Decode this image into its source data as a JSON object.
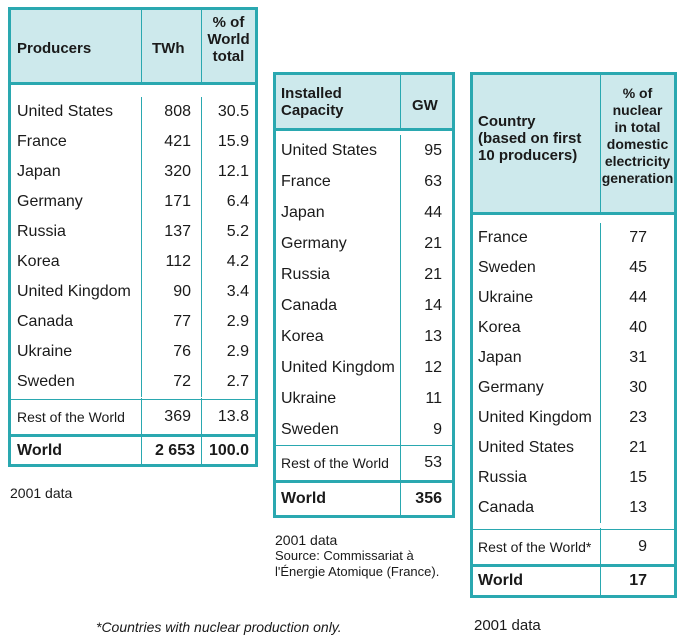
{
  "table1": {
    "headers": [
      "Producers",
      "TWh",
      "% of\nWorld\ntotal"
    ],
    "header_lines": [
      "% of",
      "World",
      "total"
    ],
    "rows": [
      [
        "United States",
        "808",
        "30.5"
      ],
      [
        "France",
        "421",
        "15.9"
      ],
      [
        "Japan",
        "320",
        "12.1"
      ],
      [
        "Germany",
        "171",
        "6.4"
      ],
      [
        "Russia",
        "137",
        "5.2"
      ],
      [
        "Korea",
        "112",
        "4.2"
      ],
      [
        "United Kingdom",
        "90",
        "3.4"
      ],
      [
        "Canada",
        "77",
        "2.9"
      ],
      [
        "Ukraine",
        "76",
        "2.9"
      ],
      [
        "Sweden",
        "72",
        "2.7"
      ]
    ],
    "rest": [
      "Rest of the World",
      "369",
      "13.8"
    ],
    "world": [
      "World",
      "2 653",
      "100.0"
    ],
    "note": "2001 data"
  },
  "table2": {
    "header_lines": [
      "Installed",
      "Capacity"
    ],
    "gw_label": "GW",
    "rows": [
      [
        "United States",
        "95"
      ],
      [
        "France",
        "63"
      ],
      [
        "Japan",
        "44"
      ],
      [
        "Germany",
        "21"
      ],
      [
        "Russia",
        "21"
      ],
      [
        "Canada",
        "14"
      ],
      [
        "Korea",
        "13"
      ],
      [
        "United Kingdom",
        "12"
      ],
      [
        "Ukraine",
        "11"
      ],
      [
        "Sweden",
        "9"
      ]
    ],
    "rest": [
      "Rest of the World",
      "53"
    ],
    "world": [
      "World",
      "356"
    ],
    "note_lines": [
      "2001 data",
      "Source: Commissariat à",
      "l'Énergie Atomique (France)."
    ]
  },
  "table3": {
    "header_left_lines": [
      "Country",
      "(based on first",
      "10 producers)"
    ],
    "header_right_lines": [
      "% of",
      "nuclear",
      "in total",
      "domestic",
      "electricity",
      "generation"
    ],
    "rows": [
      [
        "France",
        "77"
      ],
      [
        "Sweden",
        "45"
      ],
      [
        "Ukraine",
        "44"
      ],
      [
        "Korea",
        "40"
      ],
      [
        "Japan",
        "31"
      ],
      [
        "Germany",
        "30"
      ],
      [
        "United Kingdom",
        "23"
      ],
      [
        "United States",
        "21"
      ],
      [
        "Russia",
        "15"
      ],
      [
        "Canada",
        "13"
      ]
    ],
    "rest": [
      "Rest of the World*",
      "9"
    ],
    "world": [
      "World",
      "17"
    ],
    "note": "2001 data"
  },
  "footnote": "*Countries with nuclear production only."
}
